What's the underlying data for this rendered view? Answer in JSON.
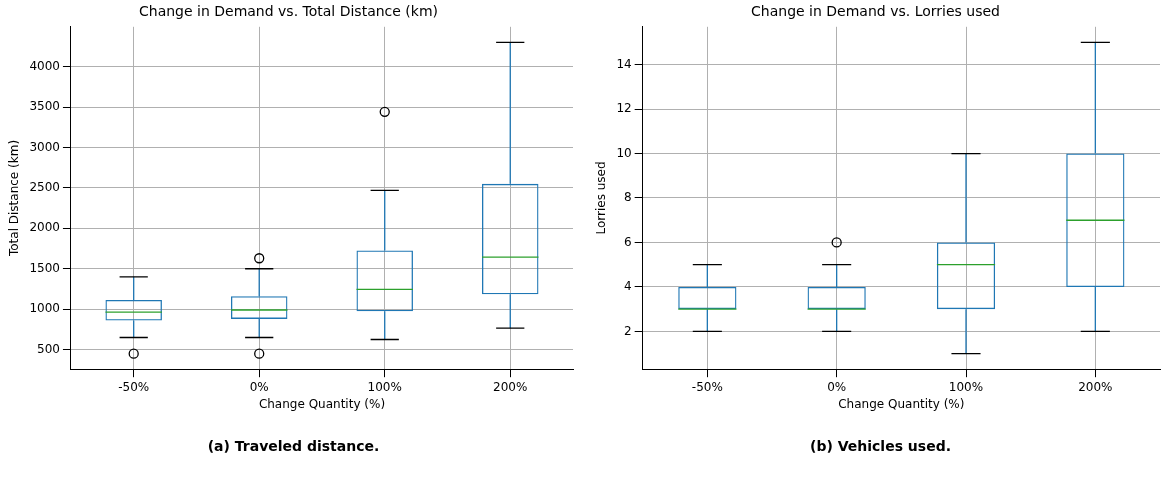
{
  "chart_data": [
    {
      "type": "box",
      "title": "Change in Demand vs. Total Distance (km)",
      "xlabel": "Change Quantity (%)",
      "ylabel": "Total Distance (km)",
      "categories": [
        "-50%",
        "0%",
        "100%",
        "200%"
      ],
      "series": [
        {
          "color": "#1f77b4",
          "boxes": [
            {
              "low": 650,
              "q1": 860,
              "median": 965,
              "q3": 1115,
              "high": 1400,
              "outliers": [
                450
              ]
            },
            {
              "low": 650,
              "q1": 880,
              "median": 990,
              "q3": 1160,
              "high": 1500,
              "outliers": [
                450,
                1630
              ]
            },
            {
              "low": 625,
              "q1": 975,
              "median": 1245,
              "q3": 1725,
              "high": 2470,
              "outliers": [
                3440
              ]
            },
            {
              "low": 765,
              "q1": 1185,
              "median": 1645,
              "q3": 2550,
              "high": 4300
            }
          ]
        }
      ],
      "ylim": [
        258,
        4492
      ],
      "yticks": [
        500,
        1000,
        1500,
        2000,
        2500,
        3000,
        3500,
        4000
      ],
      "grid": true,
      "annotations": [
        "(a) Traveled distance."
      ]
    },
    {
      "type": "box",
      "title": "Change in Demand vs. Lorries used",
      "xlabel": "Change Quantity (%)",
      "ylabel": "Lorries used",
      "categories": [
        "-50%",
        "0%",
        "100%",
        "200%"
      ],
      "series": [
        {
          "color": "#1f77b4",
          "boxes": [
            {
              "low": 2,
              "q1": 3,
              "median": 3,
              "q3": 4,
              "high": 5
            },
            {
              "low": 2,
              "q1": 3,
              "median": 3,
              "q3": 4,
              "high": 5,
              "outliers": [
                6
              ]
            },
            {
              "low": 1,
              "q1": 3,
              "median": 5,
              "q3": 6,
              "high": 10
            },
            {
              "low": 2,
              "q1": 4,
              "median": 7,
              "q3": 10,
              "high": 15
            }
          ]
        }
      ],
      "ylim": [
        0.3,
        15.7
      ],
      "yticks": [
        2,
        4,
        6,
        8,
        10,
        12,
        14
      ],
      "grid": true,
      "annotations": [
        "(b) Vehicles used."
      ]
    }
  ]
}
